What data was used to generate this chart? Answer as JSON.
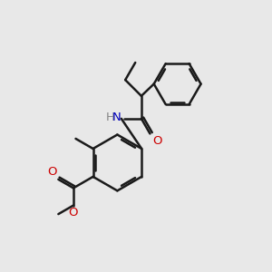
{
  "bg_color": "#e8e8e8",
  "line_color": "#1a1a1a",
  "N_color": "#0000bb",
  "O_color": "#cc0000",
  "bond_width": 1.8,
  "font_size": 9.5,
  "figsize": [
    3.0,
    3.0
  ],
  "dpi": 100,
  "xlim": [
    0,
    10
  ],
  "ylim": [
    0,
    10
  ]
}
